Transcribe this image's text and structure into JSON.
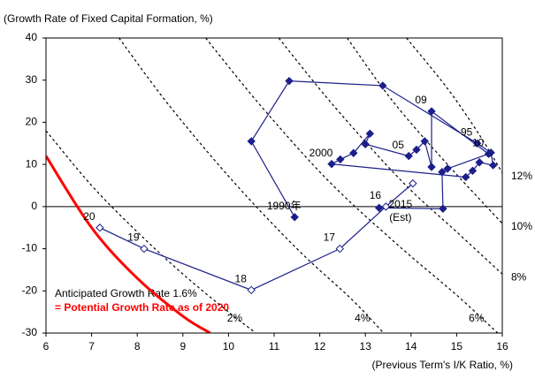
{
  "chart_data": {
    "type": "scatter",
    "y_axis_title": "(Growth Rate of Fixed Capital Formation, %)",
    "x_axis_title": "(Previous Term's I/K Ratio, %)",
    "xlim": [
      6,
      16
    ],
    "xticks": [
      6,
      7,
      8,
      9,
      10,
      11,
      12,
      13,
      14,
      15,
      16
    ],
    "ylim": [
      -30,
      40
    ],
    "yticks": [
      -30,
      -20,
      -10,
      0,
      10,
      20,
      30,
      40
    ],
    "grid": false,
    "series": [
      {
        "marker": "filled",
        "color": "#1c1f8a",
        "x": [
          11.45,
          10.5,
          11.33,
          13.38,
          15.45,
          15.75,
          15.8,
          15.5,
          15.35,
          15.2,
          12.26,
          12.45,
          12.74,
          13.1,
          13.0,
          13.95,
          14.12,
          14.3,
          14.45,
          14.45,
          15.7,
          14.8,
          14.68,
          14.7,
          13.3
        ],
        "y": [
          -2.5,
          15.5,
          29.8,
          28.7,
          15.0,
          12.8,
          9.8,
          10.5,
          8.5,
          7.0,
          10.1,
          11.2,
          12.7,
          17.3,
          14.8,
          12.0,
          13.5,
          15.5,
          9.4,
          22.6,
          12.5,
          9.0,
          8.2,
          -0.5,
          -0.3
        ],
        "point_labels": [
          "1990年",
          null,
          null,
          null,
          "95",
          null,
          null,
          null,
          null,
          null,
          "2000",
          null,
          null,
          null,
          null,
          "05",
          null,
          null,
          null,
          "09",
          "10",
          null,
          null,
          null,
          null
        ]
      },
      {
        "marker": "open",
        "color": "#1c1f8a",
        "x": [
          14.04,
          13.45,
          12.44,
          10.5,
          8.15,
          7.18
        ],
        "y": [
          5.5,
          0,
          -10,
          -19.8,
          -10,
          -5
        ],
        "point_labels": [
          [
            "2015",
            "(Est)"
          ],
          "16",
          "17",
          "18",
          "19",
          "20"
        ]
      }
    ],
    "curves": [
      {
        "label": "2%",
        "x": [
          6,
          7,
          8,
          9,
          10,
          10.6
        ],
        "y": [
          18,
          5,
          -6,
          -16,
          -25,
          -30
        ]
      },
      {
        "label": "4%",
        "x": [
          7.6,
          8.7,
          10.1,
          11.5,
          12.7,
          13.4
        ],
        "y": [
          40,
          24,
          6,
          -10,
          -22,
          -30
        ]
      },
      {
        "label": "6%",
        "x": [
          9.5,
          10.7,
          12.2,
          13.7,
          15,
          15.9
        ],
        "y": [
          40,
          24,
          6,
          -9,
          -21,
          -30
        ]
      },
      {
        "label": "8%",
        "x": [
          11.1,
          12.3,
          13.8,
          15,
          16
        ],
        "y": [
          40,
          24,
          6,
          -6,
          -16
        ]
      },
      {
        "label": "10%",
        "x": [
          12.6,
          13.6,
          14.8,
          16
        ],
        "y": [
          40,
          25,
          10,
          -4
        ]
      },
      {
        "label": "12%",
        "x": [
          13.9,
          14.8,
          15.5,
          16
        ],
        "y": [
          40,
          28,
          17,
          8
        ]
      }
    ],
    "highlight_curve": {
      "color": "#ff0000",
      "x": [
        6,
        7,
        8,
        9,
        9.6
      ],
      "y": [
        12,
        -5,
        -17,
        -26,
        -30
      ]
    },
    "annotations": [
      "Anticipated Growth Rate 1.6%",
      "= Potential Growth Rate as of 2020"
    ]
  }
}
